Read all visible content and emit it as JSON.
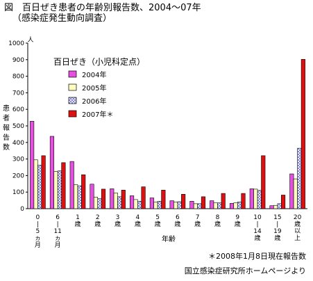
{
  "figure": {
    "title": "図　百日ぜき患者の年齢別報告数、2004～07年",
    "subtitle": "（感染症発生動向調査）",
    "footnote": "＊2008年1月8日現在報告数",
    "source": "国立感染症研究所ホームページより"
  },
  "chart_data": {
    "type": "bar",
    "title": "百日ぜき（小児科定点）",
    "ylabel": "患者報告数",
    "yunit": "人",
    "xlabel": "年齢",
    "ylim": [
      0,
      1000
    ],
    "yticks": [
      0,
      100,
      200,
      300,
      400,
      500,
      600,
      700,
      800,
      900,
      1000
    ],
    "grid": false,
    "legend_position": "top-left",
    "categories": [
      "0〜5ヵ月",
      "6〜11ヵ月",
      "1歳",
      "2歳",
      "3歳",
      "4歳",
      "5歳",
      "6歳",
      "7歳",
      "8歳",
      "9歳",
      "10〜14歳",
      "15〜19歳",
      "20歳以上"
    ],
    "category_labels": [
      [
        "0",
        "|",
        "5",
        "ヵ",
        "月"
      ],
      [
        "6",
        "|",
        "11",
        "ヵ",
        "月"
      ],
      [
        "1",
        "歳"
      ],
      [
        "2",
        "歳"
      ],
      [
        "3",
        "歳"
      ],
      [
        "4",
        "歳"
      ],
      [
        "5",
        "歳"
      ],
      [
        "6",
        "歳"
      ],
      [
        "7",
        "歳"
      ],
      [
        "8",
        "歳"
      ],
      [
        "9",
        "歳"
      ],
      [
        "10",
        "|",
        "14",
        "歳"
      ],
      [
        "15",
        "|",
        "19",
        "歳"
      ],
      [
        "20",
        "歳",
        "以",
        "上"
      ]
    ],
    "series": [
      {
        "name": "2004年",
        "color": "#e54fe0",
        "pattern": "solid",
        "values": [
          528,
          437,
          285,
          148,
          120,
          78,
          65,
          48,
          45,
          48,
          32,
          120,
          18,
          210
        ]
      },
      {
        "name": "2005年",
        "color": "#ffffc0",
        "pattern": "solid",
        "values": [
          295,
          225,
          145,
          70,
          95,
          55,
          40,
          40,
          30,
          35,
          35,
          118,
          20,
          180
        ]
      },
      {
        "name": "2006年",
        "color": "#ffffff",
        "pattern": "crosshatch",
        "values": [
          262,
          228,
          138,
          60,
          72,
          45,
          45,
          42,
          30,
          35,
          40,
          110,
          30,
          365
        ]
      },
      {
        "name": "2007年＊",
        "color": "#dd1111",
        "pattern": "solid",
        "values": [
          320,
          278,
          205,
          118,
          112,
          132,
          112,
          87,
          72,
          92,
          92,
          320,
          82,
          902
        ]
      }
    ]
  }
}
